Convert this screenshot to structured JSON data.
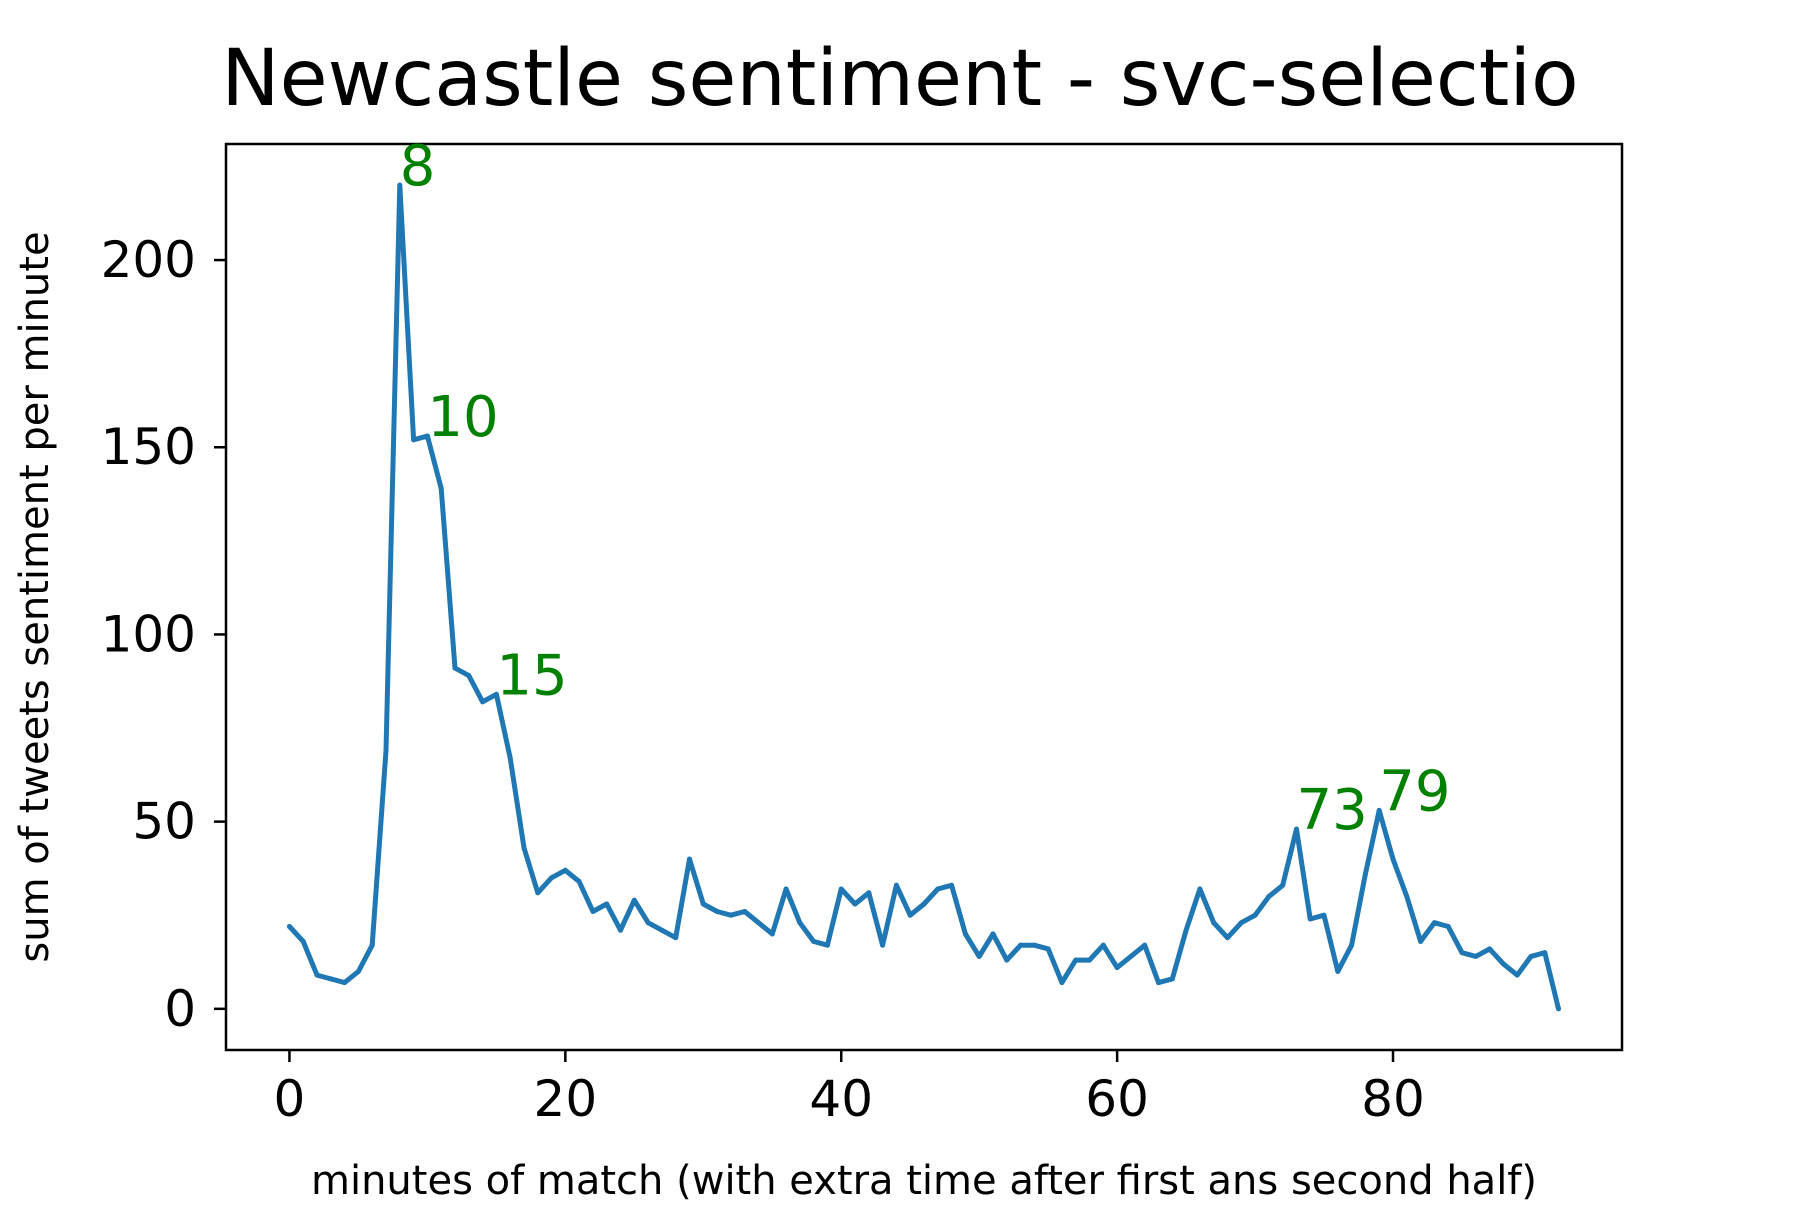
{
  "chart_data": {
    "type": "line",
    "title": "Newcastle sentiment - svc-selectio",
    "xlabel": "minutes of match (with extra time after first ans second half)",
    "ylabel": "sum of tweets sentiment per minute",
    "xlim": [
      -4.6,
      96.6
    ],
    "ylim": [
      -11,
      231
    ],
    "xticks": [
      0,
      20,
      40,
      60,
      80
    ],
    "yticks": [
      0,
      50,
      100,
      150,
      200
    ],
    "grid": false,
    "line_color": "#1f77b4",
    "annotation_color": "#008000",
    "series": [
      {
        "x": [
          0,
          1,
          2,
          3,
          4,
          5,
          6,
          7,
          8,
          9,
          10,
          11,
          12,
          13,
          14,
          15,
          16,
          17,
          18,
          19,
          20,
          21,
          22,
          23,
          24,
          25,
          26,
          27,
          28,
          29,
          30,
          31,
          32,
          33,
          34,
          35,
          36,
          37,
          38,
          39,
          40,
          41,
          42,
          43,
          44,
          45,
          46,
          47,
          48,
          49,
          50,
          51,
          52,
          53,
          54,
          55,
          56,
          57,
          58,
          59,
          60,
          61,
          62,
          63,
          64,
          65,
          66,
          67,
          68,
          69,
          70,
          71,
          72,
          73,
          74,
          75,
          76,
          77,
          78,
          79,
          80,
          81,
          82,
          83,
          84,
          85,
          86,
          87,
          88,
          89,
          90,
          91,
          92
        ],
        "values": [
          22,
          18,
          9,
          8,
          7,
          10,
          17,
          69,
          220,
          152,
          153,
          139,
          91,
          89,
          82,
          84,
          67,
          43,
          31,
          35,
          37,
          34,
          26,
          28,
          21,
          29,
          23,
          21,
          19,
          40,
          28,
          26,
          25,
          26,
          23,
          20,
          32,
          23,
          18,
          17,
          32,
          28,
          31,
          17,
          33,
          25,
          28,
          32,
          33,
          20,
          14,
          20,
          13,
          17,
          17,
          16,
          7,
          13,
          13,
          17,
          11,
          14,
          17,
          7,
          8,
          21,
          32,
          23,
          19,
          23,
          25,
          30,
          33,
          48,
          24,
          25,
          10,
          17,
          36,
          53,
          40,
          30,
          18,
          23,
          22,
          15,
          14,
          16,
          12,
          9,
          14,
          15,
          0
        ]
      }
    ],
    "annotations": [
      {
        "text": "8",
        "x": 8,
        "y": 220
      },
      {
        "text": "10",
        "x": 10,
        "y": 153
      },
      {
        "text": "15",
        "x": 15,
        "y": 84
      },
      {
        "text": "73",
        "x": 73,
        "y": 48
      },
      {
        "text": "79",
        "x": 79,
        "y": 53
      }
    ]
  }
}
